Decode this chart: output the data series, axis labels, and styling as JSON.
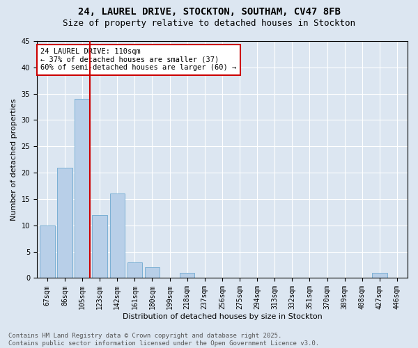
{
  "title_line1": "24, LAUREL DRIVE, STOCKTON, SOUTHAM, CV47 8FB",
  "title_line2": "Size of property relative to detached houses in Stockton",
  "xlabel": "Distribution of detached houses by size in Stockton",
  "ylabel": "Number of detached properties",
  "categories": [
    "67sqm",
    "86sqm",
    "105sqm",
    "123sqm",
    "142sqm",
    "161sqm",
    "180sqm",
    "199sqm",
    "218sqm",
    "237sqm",
    "256sqm",
    "275sqm",
    "294sqm",
    "313sqm",
    "332sqm",
    "351sqm",
    "370sqm",
    "389sqm",
    "408sqm",
    "427sqm",
    "446sqm"
  ],
  "values": [
    10,
    21,
    34,
    12,
    16,
    3,
    2,
    0,
    1,
    0,
    0,
    0,
    0,
    0,
    0,
    0,
    0,
    0,
    0,
    1,
    0
  ],
  "bar_color": "#b8cfe8",
  "bar_edge_color": "#7aafd4",
  "vline_index": 2,
  "vline_color": "#cc0000",
  "annotation_text": "24 LAUREL DRIVE: 110sqm\n← 37% of detached houses are smaller (37)\n60% of semi-detached houses are larger (60) →",
  "annotation_box_color": "#ffffff",
  "annotation_box_edge": "#cc0000",
  "ylim": [
    0,
    45
  ],
  "yticks": [
    0,
    5,
    10,
    15,
    20,
    25,
    30,
    35,
    40,
    45
  ],
  "bg_color": "#dce6f1",
  "plot_bg_color": "#dce6f1",
  "footer_line1": "Contains HM Land Registry data © Crown copyright and database right 2025.",
  "footer_line2": "Contains public sector information licensed under the Open Government Licence v3.0.",
  "title_fontsize": 10,
  "subtitle_fontsize": 9,
  "axis_label_fontsize": 8,
  "tick_fontsize": 7,
  "annotation_fontsize": 7.5,
  "footer_fontsize": 6.5
}
